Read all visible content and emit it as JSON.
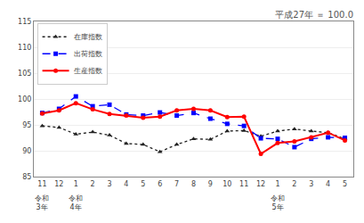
{
  "chart_data": {
    "type": "line",
    "title": "平成27年 ＝ 100.0",
    "categories": [
      "11",
      "12",
      "1",
      "2",
      "3",
      "4",
      "5",
      "6",
      "7",
      "8",
      "9",
      "10",
      "11",
      "12",
      "1",
      "2",
      "3",
      "4",
      "5"
    ],
    "series": [
      {
        "name": "在庫指数",
        "color": "#222222",
        "marker": "triangle",
        "line_style": "dotted",
        "values": [
          94.8,
          94.5,
          93.2,
          93.6,
          93.0,
          91.4,
          91.2,
          89.8,
          91.2,
          92.3,
          92.2,
          93.8,
          93.9,
          92.8,
          93.8,
          94.2,
          93.8,
          93.5,
          92.3
        ]
      },
      {
        "name": "出荷指数",
        "color": "#0000ff",
        "marker": "square",
        "line_style": "dashed",
        "values": [
          97.3,
          98.1,
          100.5,
          98.6,
          98.9,
          97.0,
          96.8,
          97.4,
          96.8,
          97.3,
          96.2,
          95.2,
          94.8,
          92.4,
          92.3,
          90.7,
          92.3,
          92.6,
          92.5
        ]
      },
      {
        "name": "生産指数",
        "color": "#ff0000",
        "marker": "circle",
        "line_style": "solid",
        "values": [
          97.2,
          97.8,
          99.2,
          98.0,
          97.1,
          96.8,
          96.4,
          96.6,
          97.8,
          98.1,
          97.8,
          96.5,
          96.6,
          89.4,
          91.5,
          91.8,
          92.6,
          93.5,
          92.0
        ]
      }
    ],
    "ylim": [
      85,
      115
    ],
    "yticks": [
      85,
      90,
      95,
      100,
      105,
      110,
      115
    ],
    "grid": true,
    "legend": "upper left",
    "annotations": [
      {
        "index": 0,
        "text": "令和\n3年"
      },
      {
        "index": 2,
        "text": "令和\n4年"
      },
      {
        "index": 14,
        "text": "令和\n5年"
      }
    ]
  }
}
